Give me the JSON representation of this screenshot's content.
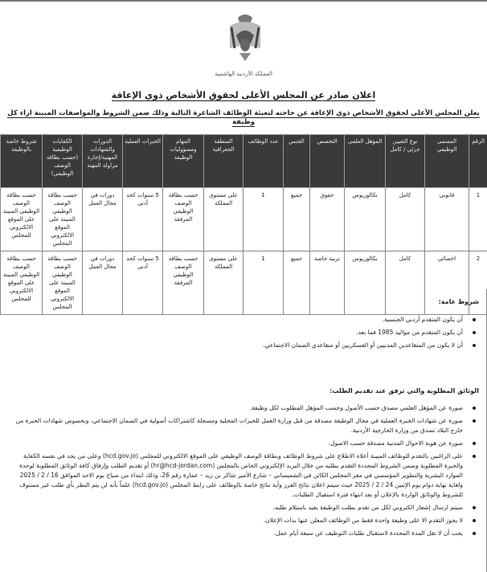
{
  "header": {
    "logo": "jordan-coat-of-arms",
    "kingdom_name": "المملكة الأردنية الهاشمية",
    "title": "اعلان صادر عن المجلس الأعلى لحقوق الأشخاص ذوي الإعاقة",
    "intro": "يعلن المجلس الأعلى لحقوق الأشخاص ذوي الإعاقة عن حاجته لتعبئة الوظائف الشاغرة التالية وذلك ضمن الشروط والمواصفات المبينة ازاء كل وظيفة"
  },
  "table": {
    "columns": [
      "الرقم",
      "المسمى الوظيفي",
      "نوع التعيين جزئي / كامل",
      "المؤهل العلمي",
      "التخصص",
      "الجنس",
      "عدد الوظائف",
      "المنطقة الجغرافية",
      "المهام ومسؤوليات الوظيفة",
      "الخبرات العملية",
      "الدورات والشهادات المهنية/إجازة مزاولة المهنة",
      "الكفايات الوظيفية (حسب بطاقة الوصف الوظيفي)",
      "شروط خاصة بالوظيفة"
    ],
    "rows": [
      [
        "1",
        "قانوني",
        "كامل",
        "بكالوريوس",
        "حقوق",
        "جميع",
        "1",
        "على مستوى المملكة",
        "حسب بطاقة الوصف الوظيفي المرفقة",
        "5 سنوات كحد أدنى",
        "دورات في مجال العمل",
        "حسب بطاقة الوصف الوظيفي المبينة على الموقع الالكتروني المجلس",
        "حسب بطاقة الوصف الوظيفي المبينة على الموقع الالكتروني للمجلس"
      ],
      [
        "2",
        "اخصائي",
        "كامل",
        "بكالوريوس",
        "تربية خاصة",
        "جميع",
        "1",
        "على مستوى المملكة",
        "حسب بطاقة الوصف الوظيفي المرفقة",
        "5 سنوات كحد أدنى",
        "دورات في مجال العمل",
        "حسب بطاقة الوصف الوظيفي المبينة على الموقع الالكتروني المجلس",
        "حسب بطاقة الوصف الوظيفي المبينة على الموقع الالكتروني للمجلس"
      ]
    ]
  },
  "general_conditions": {
    "heading": "شروط عامة:",
    "items": [
      "أن يكون المتقدم أردني الجنسية.",
      "أن يكون المتقدم من مواليد 1985 فما بعد.",
      "أن لا يكون من المتقاعدين المدنيين أو العسكريين أو متقاعدي الضمان الاجتماعي."
    ]
  },
  "documents": {
    "heading": "الوثائق المطلوبة والتي ترفق عند تقديم الطلب:",
    "items": [
      "صورة عن المؤهل العلمي مصدق حسب الأصول وحسب المؤهل المطلوب لكل وظيفة.",
      "صورة عن شهادات الخبرة العملية في مجال الوظيفة مصدقة من قبل وزارة العمل للخبرات المحلية ومسجلة كاشتراكات أصولية في الضمان الاجتماعي، وبخصوص شهادات الخبرة من خارج البلاد تصدق من وزارة الخارجية الأردنية.",
      "صورة عن هوية الاحوال المدنية مصدقة حسب الاصول.",
      "على الراغبين بالتقدم للوظائف المبينة أعلاه الاطلاع على شروط الوظائف وبطاقة الوصف الوظيفي على الموقع الالكتروني للمجلس (hcd.gov.jo) وعلى من يجد في نفسه الكفاية والخبرة المطلوبة وضمن الشروط المحددة التقدم بطلبه من خلال البريد الإلكتروني الخاص بالمجلس (hr@hcd-jordan.com) أو تقديم الطلب وإرفاق كافة الوثائق المطلوبة لوحدة الموارد البشرية والتطوير المؤسسي في مقر المجلس الكائن في الشميساني – شارع الأمير شاكر بن زيد – عمارة رقم 26، وذلك ابتداء من صباح يوم الاحد الموافق 16 / 2 / 2025 ولغاية نهاية دوام يوم الإثنين 24 / 2 / 2025 حيث سيتم اعلان نتائج الفرز وأية نتائج خاصة بالوظائف على رابط المجلس (hcd.gov.jo) علماً بأنه لن يتم النظر بأي طلب غير مستوف للشروط والوثائق الواردة بالإعلان أو بعد انتهاء فترة استقبال الطلبات.",
      "سيتم ارسال إشعار الكتروني لكل من تقدم بطلب الوظيفة يفيد باستلام طلبه.",
      "لا يجوز التقدم الا على وظيفة واحدة فقط من الوظائف المعلن عنها بذات الإعلان.",
      "يجب أن لا تقل المدة المحددة لاستقبال طلبات التوظيف عن سبعة أيام عمل."
    ]
  }
}
